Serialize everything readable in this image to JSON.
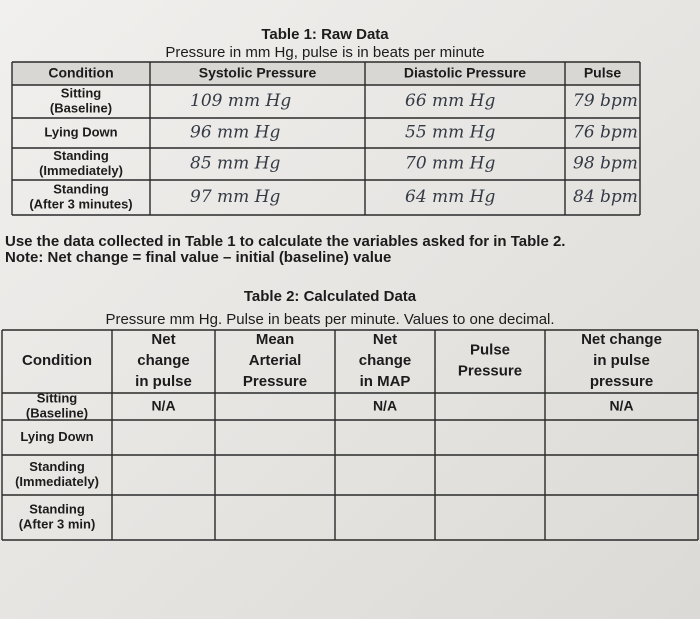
{
  "table1": {
    "title": "Table 1: Raw Data",
    "subtitle": "Pressure in mm Hg, pulse is in beats per minute",
    "columns": [
      "Condition",
      "Systolic Pressure",
      "Diastolic Pressure",
      "Pulse"
    ],
    "rows": [
      {
        "condition": [
          "Sitting",
          "(Baseline)"
        ],
        "values": [
          "109 mm Hg",
          "66 mm Hg",
          "79 bpm"
        ]
      },
      {
        "condition": [
          "Lying Down"
        ],
        "values": [
          "96 mm Hg",
          "55 mm Hg",
          "76 bpm"
        ]
      },
      {
        "condition": [
          "Standing",
          "(Immediately)"
        ],
        "values": [
          "85 mm Hg",
          "70 mm Hg",
          "98 bpm"
        ]
      },
      {
        "condition": [
          "Standing",
          "(After 3 minutes)"
        ],
        "values": [
          "97 mm Hg",
          "64 mm Hg",
          "84 bpm"
        ]
      }
    ]
  },
  "instructions": "Use the data collected in Table 1 to calculate the variables asked for in Table 2.",
  "note": "Note: Net change = final value – initial (baseline) value",
  "table2": {
    "title": "Table 2: Calculated Data",
    "subtitle": "Pressure mm Hg. Pulse in beats per minute. Values to one decimal.",
    "columns": [
      [
        "Condition"
      ],
      [
        "Net",
        "change",
        "in pulse"
      ],
      [
        "Mean",
        "Arterial",
        "Pressure"
      ],
      [
        "Net",
        "change",
        "in MAP"
      ],
      [
        "Pulse",
        "Pressure"
      ],
      [
        "Net change",
        "in pulse",
        "pressure"
      ]
    ],
    "rows": [
      {
        "condition": [
          "Sitting",
          "(Baseline)"
        ],
        "values": [
          "N/A",
          null,
          "N/A",
          null,
          "N/A"
        ]
      },
      {
        "condition": [
          "Lying Down"
        ],
        "values": [
          null,
          null,
          null,
          null,
          null
        ]
      },
      {
        "condition": [
          "Standing",
          "(Immediately)"
        ],
        "values": [
          null,
          null,
          null,
          null,
          null
        ]
      },
      {
        "condition": [
          "Standing",
          "(After 3 min)"
        ],
        "values": [
          null,
          null,
          null,
          null,
          null
        ]
      }
    ]
  }
}
